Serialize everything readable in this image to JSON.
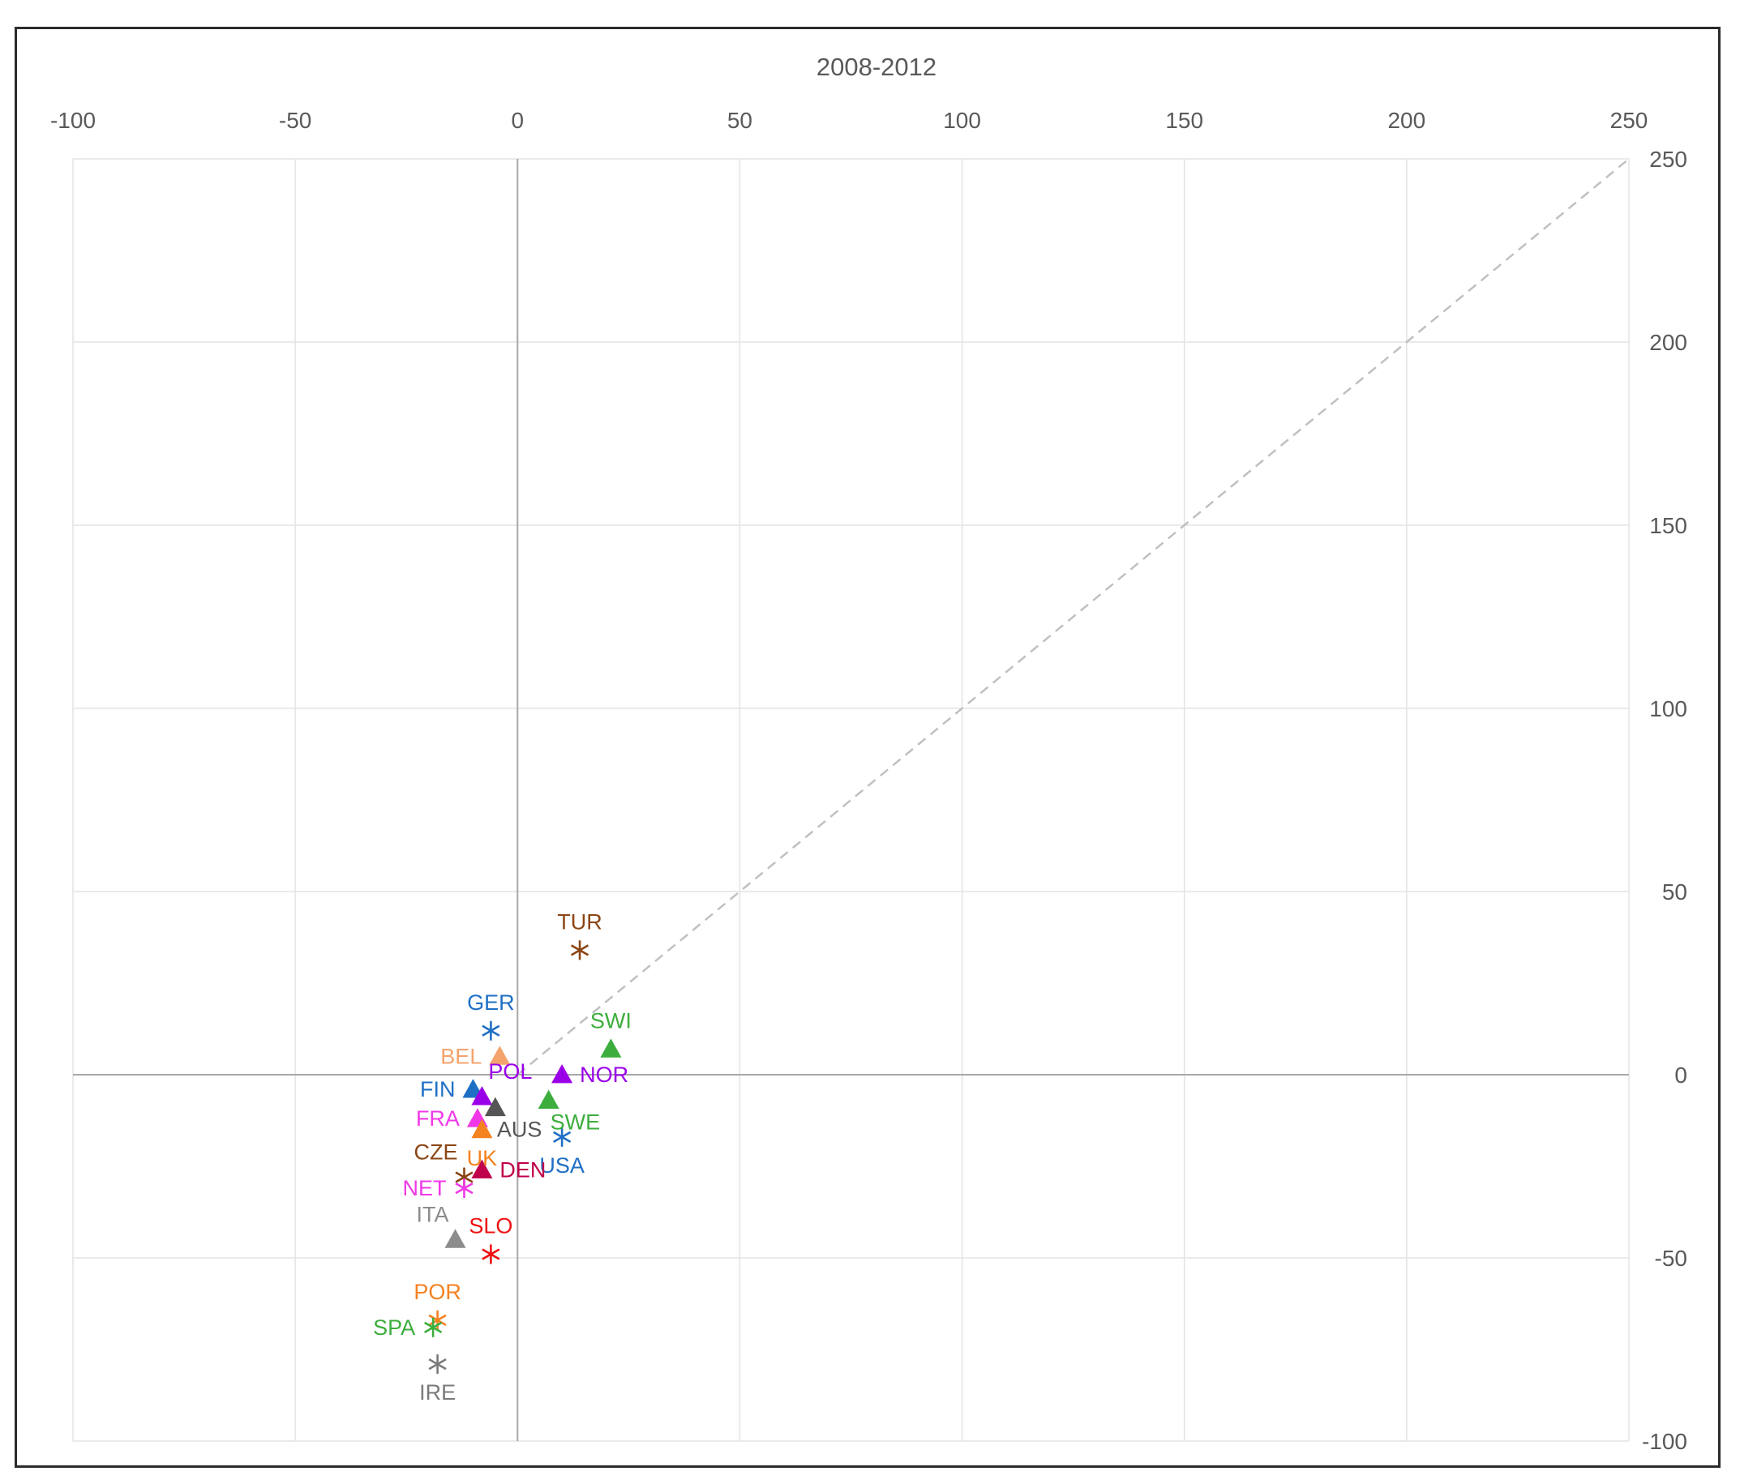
{
  "chart_data": {
    "type": "scatter",
    "title": "2008-2012",
    "xlabel": "",
    "ylabel": "",
    "xlim": [
      -100,
      250
    ],
    "ylim": [
      -100,
      250
    ],
    "x_ticks": [
      -100,
      -50,
      0,
      50,
      100,
      150,
      200,
      250
    ],
    "y_ticks": [
      -100,
      -50,
      0,
      50,
      100,
      150,
      200,
      250
    ],
    "x_tick_labels": [
      "-100",
      "-50",
      "0",
      "50",
      "100",
      "150",
      "200",
      "250"
    ],
    "y_tick_labels": [
      "-100",
      "-50",
      "0",
      "50",
      "100",
      "150",
      "200",
      "250"
    ],
    "x_axis_position": "top",
    "y_axis_position": "right",
    "grid": true,
    "reference_line": {
      "from": [
        0,
        0
      ],
      "to": [
        250,
        250
      ],
      "style": "dashed",
      "color": "#c0c0c0"
    },
    "points": [
      {
        "label": "TUR",
        "x": 14,
        "y": 34,
        "marker": "asterisk",
        "color": "#8B4513",
        "label_pos": "above"
      },
      {
        "label": "GER",
        "x": -6,
        "y": 12,
        "marker": "asterisk",
        "color": "#1F6FC5",
        "label_pos": "above"
      },
      {
        "label": "SWI",
        "x": 21,
        "y": 7,
        "marker": "triangle",
        "color": "#3DAE3D",
        "label_pos": "above"
      },
      {
        "label": "BEL",
        "x": -4,
        "y": 5,
        "marker": "triangle",
        "color": "#F4A36C",
        "label_pos": "left"
      },
      {
        "label": "NOR",
        "x": 10,
        "y": 0,
        "marker": "triangle",
        "color": "#9A00E8",
        "label_pos": "right"
      },
      {
        "label": "FIN",
        "x": -10,
        "y": -4,
        "marker": "triangle",
        "color": "#1F6FC5",
        "label_pos": "left"
      },
      {
        "label": "POL",
        "x": -8,
        "y": -6,
        "marker": "triangle",
        "color": "#9A00E8",
        "label_pos": "above-right"
      },
      {
        "label": "SWE",
        "x": 7,
        "y": -7,
        "marker": "triangle",
        "color": "#3DAE3D",
        "label_pos": "below-right"
      },
      {
        "label": "AUS",
        "x": -5,
        "y": -9,
        "marker": "triangle",
        "color": "#555555",
        "label_pos": "below-right"
      },
      {
        "label": "FRA",
        "x": -9,
        "y": -12,
        "marker": "triangle",
        "color": "#F038E8",
        "label_pos": "left"
      },
      {
        "label": "UK",
        "x": -8,
        "y": -15,
        "marker": "triangle",
        "color": "#F58220",
        "label_pos": "below"
      },
      {
        "label": "USA",
        "x": 10,
        "y": -17,
        "marker": "asterisk",
        "color": "#1F6FC5",
        "label_pos": "below"
      },
      {
        "label": "DEN",
        "x": -8,
        "y": -26,
        "marker": "triangle",
        "color": "#C0004A",
        "label_pos": "right"
      },
      {
        "label": "CZE",
        "x": -12,
        "y": -28,
        "marker": "asterisk",
        "color": "#8B4513",
        "label_pos": "above-left"
      },
      {
        "label": "NET",
        "x": -12,
        "y": -31,
        "marker": "asterisk",
        "color": "#F038E8",
        "label_pos": "left"
      },
      {
        "label": "ITA",
        "x": -14,
        "y": -45,
        "marker": "triangle",
        "color": "#8C8C8C",
        "label_pos": "above-left"
      },
      {
        "label": "SLO",
        "x": -6,
        "y": -49,
        "marker": "asterisk",
        "color": "#EE1111",
        "label_pos": "above"
      },
      {
        "label": "POR",
        "x": -18,
        "y": -67,
        "marker": "asterisk",
        "color": "#F58220",
        "label_pos": "above"
      },
      {
        "label": "SPA",
        "x": -19,
        "y": -69,
        "marker": "asterisk",
        "color": "#3DAE3D",
        "label_pos": "left"
      },
      {
        "label": "IRE",
        "x": -18,
        "y": -79,
        "marker": "asterisk",
        "color": "#7A7A7A",
        "label_pos": "below"
      }
    ]
  },
  "colors": {
    "grid": "#e4e4e4",
    "axis": "#a8a8a8",
    "tick_text": "#595959",
    "title_text": "#595959",
    "reference_line": "#c0c0c0"
  }
}
